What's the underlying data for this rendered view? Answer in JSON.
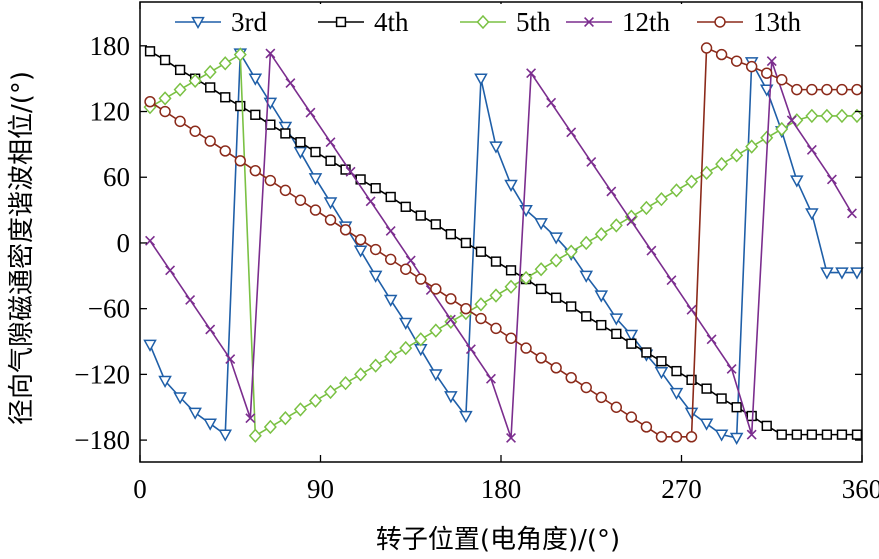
{
  "chart_data": {
    "type": "line",
    "title": "",
    "xlabel": "转子位置(电角度)/(°)",
    "ylabel": "径向气隙磁通密度谐波相位/(°)",
    "xlim": [
      0,
      360
    ],
    "ylim": [
      -200,
      220
    ],
    "x_ticks": [
      0,
      90,
      180,
      270,
      360
    ],
    "y_ticks": [
      -180,
      -120,
      -60,
      0,
      60,
      120,
      180
    ],
    "x_tick_labels": [
      "0",
      "90",
      "180",
      "270",
      "360"
    ],
    "y_tick_labels": [
      "−180",
      "−120",
      "−60",
      "0",
      "60",
      "120",
      "180"
    ],
    "grid": false,
    "legend_position": "top",
    "series": [
      {
        "name": "3rd",
        "color": "#1f5fa8",
        "marker": "triangle-down",
        "x": [
          5,
          12.5,
          20,
          27.5,
          35,
          42.5,
          50,
          57.5,
          65,
          72.5,
          80,
          87.5,
          95,
          102.5,
          110,
          117.5,
          125,
          132.5,
          140,
          147.5,
          155,
          162.5,
          170,
          177.5,
          185,
          192.5,
          200,
          207.5,
          215,
          222.5,
          230,
          237.5,
          245,
          252.5,
          260,
          267.5,
          275,
          282.5,
          290,
          297.5,
          305,
          312.5,
          320,
          327.5,
          335,
          342.5,
          350,
          357.5
        ],
        "y": [
          -93,
          -126,
          -141,
          -155,
          -165,
          -175,
          173,
          150,
          128,
          106,
          83,
          59,
          37,
          15,
          -7,
          -30,
          -52,
          -73,
          -97,
          -120,
          -140,
          -158,
          150,
          88,
          53,
          30,
          18,
          5,
          -10,
          -30,
          -48,
          -69,
          -84,
          -102,
          -118,
          -137,
          -155,
          -165,
          -175,
          -178,
          165,
          140,
          102,
          57,
          27,
          -27,
          -27,
          -27
        ]
      },
      {
        "name": "4th",
        "color": "#000000",
        "marker": "square",
        "x": [
          5,
          12.5,
          20,
          27.5,
          35,
          42.5,
          50,
          57.5,
          65,
          72.5,
          80,
          87.5,
          95,
          102.5,
          110,
          117.5,
          125,
          132.5,
          140,
          147.5,
          155,
          162.5,
          170,
          177.5,
          185,
          192.5,
          200,
          207.5,
          215,
          222.5,
          230,
          237.5,
          245,
          252.5,
          260,
          267.5,
          275,
          282.5,
          290,
          297.5,
          305,
          312.5,
          320,
          327.5,
          335,
          342.5,
          350,
          357.5
        ],
        "y": [
          175,
          167,
          158,
          150,
          142,
          133,
          125,
          117,
          108,
          100,
          92,
          83,
          75,
          67,
          58,
          50,
          42,
          33,
          25,
          17,
          8,
          0,
          -8,
          -17,
          -25,
          -33,
          -42,
          -50,
          -58,
          -67,
          -75,
          -83,
          -92,
          -100,
          -108,
          -117,
          -125,
          -133,
          -142,
          -150,
          -158,
          -167,
          -175,
          -175,
          -175,
          -175,
          -175,
          -175
        ]
      },
      {
        "name": "5th",
        "color": "#7ac143",
        "marker": "diamond",
        "x": [
          5,
          12.5,
          20,
          27.5,
          35,
          42.5,
          50,
          57.5,
          65,
          72.5,
          80,
          87.5,
          95,
          102.5,
          110,
          117.5,
          125,
          132.5,
          140,
          147.5,
          155,
          162.5,
          170,
          177.5,
          185,
          192.5,
          200,
          207.5,
          215,
          222.5,
          230,
          237.5,
          245,
          252.5,
          260,
          267.5,
          275,
          282.5,
          290,
          297.5,
          305,
          312.5,
          320,
          327.5,
          335,
          342.5,
          350,
          357.5
        ],
        "y": [
          124,
          132,
          140,
          148,
          156,
          164,
          172,
          -176,
          -168,
          -160,
          -152,
          -144,
          -136,
          -128,
          -120,
          -112,
          -104,
          -96,
          -88,
          -80,
          -72,
          -64,
          -56,
          -48,
          -40,
          -32,
          -24,
          -16,
          -8,
          0,
          8,
          16,
          24,
          32,
          40,
          48,
          56,
          64,
          72,
          80,
          88,
          96,
          104,
          112,
          116,
          116,
          116,
          116
        ]
      },
      {
        "name": "12th",
        "color": "#7b2d8e",
        "marker": "x",
        "x": [
          5,
          15,
          25,
          35,
          45,
          55,
          65,
          75,
          85,
          95,
          105,
          115,
          125,
          135,
          145,
          155,
          165,
          175,
          185,
          195,
          205,
          215,
          225,
          235,
          245,
          255,
          265,
          275,
          285,
          295,
          305,
          315,
          325,
          335,
          345,
          355
        ],
        "y": [
          2,
          -25,
          -52,
          -79,
          -106,
          -160,
          173,
          146,
          119,
          92,
          65,
          38,
          11,
          -16,
          -43,
          -70,
          -97,
          -124,
          -178,
          155,
          128,
          101,
          74,
          47,
          20,
          -7,
          -34,
          -61,
          -88,
          -115,
          -175,
          166,
          112,
          85,
          58,
          27
        ]
      },
      {
        "name": "13th",
        "color": "#8b2a1a",
        "marker": "circle",
        "x": [
          5,
          12.5,
          20,
          27.5,
          35,
          42.5,
          50,
          57.5,
          65,
          72.5,
          80,
          87.5,
          95,
          102.5,
          110,
          117.5,
          125,
          132.5,
          140,
          147.5,
          155,
          162.5,
          170,
          177.5,
          185,
          192.5,
          200,
          207.5,
          215,
          222.5,
          230,
          237.5,
          245,
          252.5,
          260,
          267.5,
          275,
          282.5,
          290,
          297.5,
          305,
          312.5,
          320,
          327.5,
          335,
          342.5,
          350,
          357.5
        ],
        "y": [
          129,
          120,
          111,
          102,
          93,
          84,
          75,
          66,
          57,
          48,
          39,
          30,
          21,
          12,
          3,
          -6,
          -15,
          -24,
          -33,
          -42,
          -51,
          -60,
          -69,
          -78,
          -87,
          -96,
          -105,
          -114,
          -123,
          -132,
          -141,
          -150,
          -159,
          -168,
          -177,
          -177,
          -177,
          178,
          172,
          166,
          161,
          155,
          149,
          140,
          140,
          140,
          140,
          140
        ]
      }
    ]
  }
}
